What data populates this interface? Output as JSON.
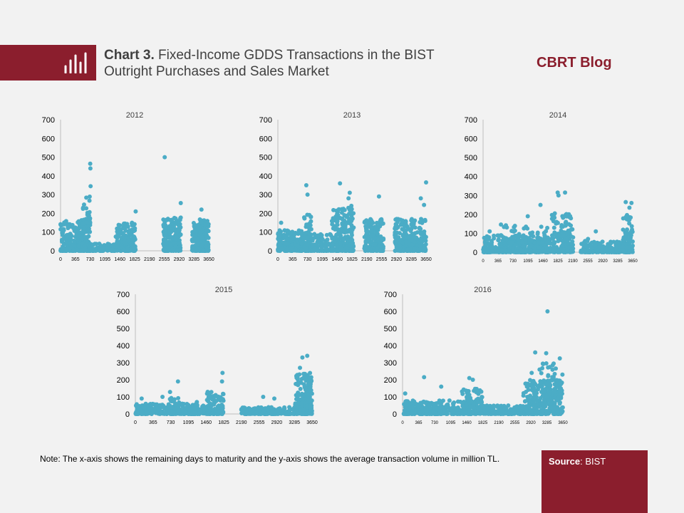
{
  "header": {
    "title_bold": "Chart 3.",
    "title_rest_line1": "Fixed-Income GDDS Transactions in the BIST",
    "title_line2": "Outright Purchases and Sales Market",
    "blog_label": "CBRT Blog"
  },
  "footer": {
    "note": "Note: The x-axis shows the remaining days to maturity and the y-axis shows the average transaction volume in million TL.",
    "source_label": "Source",
    "source_value": "BIST"
  },
  "colors": {
    "accent": "#8b1e2d",
    "points": "#4bacc6",
    "text": "#404040"
  },
  "chart_data": [
    {
      "type": "scatter",
      "title": "2012",
      "xlim": [
        0,
        3650
      ],
      "ylim": [
        0,
        700
      ],
      "xticks": [
        0,
        365,
        730,
        1095,
        1460,
        1825,
        2190,
        2555,
        2920,
        3285,
        3650
      ],
      "yticks": [
        0,
        100,
        200,
        300,
        400,
        500,
        600,
        700
      ],
      "clusters": [
        {
          "x": [
            0,
            730
          ],
          "y": [
            0,
            170
          ],
          "n": 300
        },
        {
          "x": [
            550,
            730
          ],
          "y": [
            100,
            290
          ],
          "n": 40
        },
        {
          "x": [
            730,
            1360
          ],
          "y": [
            0,
            40
          ],
          "n": 120
        },
        {
          "x": [
            1360,
            1850
          ],
          "y": [
            0,
            150
          ],
          "n": 180
        },
        {
          "x": [
            2530,
            2960
          ],
          "y": [
            0,
            180
          ],
          "n": 220
        },
        {
          "x": [
            3240,
            3650
          ],
          "y": [
            0,
            170
          ],
          "n": 220
        }
      ],
      "points": [
        [
          730,
          465
        ],
        [
          735,
          440
        ],
        [
          740,
          345
        ],
        [
          2565,
          500
        ],
        [
          2960,
          255
        ],
        [
          1850,
          210
        ],
        [
          3470,
          220
        ],
        [
          180,
          130
        ],
        [
          1760,
          150
        ]
      ]
    },
    {
      "type": "scatter",
      "title": "2013",
      "xlim": [
        0,
        3650
      ],
      "ylim": [
        0,
        700
      ],
      "xticks": [
        0,
        365,
        730,
        1095,
        1460,
        1825,
        2190,
        2555,
        2920,
        3285,
        3650
      ],
      "yticks": [
        0,
        100,
        200,
        300,
        400,
        500,
        600,
        700
      ],
      "clusters": [
        {
          "x": [
            0,
            560
          ],
          "y": [
            0,
            110
          ],
          "n": 200
        },
        {
          "x": [
            560,
            830
          ],
          "y": [
            0,
            200
          ],
          "n": 100
        },
        {
          "x": [
            830,
            1330
          ],
          "y": [
            0,
            90
          ],
          "n": 90
        },
        {
          "x": [
            1330,
            1870
          ],
          "y": [
            0,
            230
          ],
          "n": 250
        },
        {
          "x": [
            2130,
            2600
          ],
          "y": [
            0,
            170
          ],
          "n": 200
        },
        {
          "x": [
            2880,
            3650
          ],
          "y": [
            0,
            170
          ],
          "n": 280
        }
      ],
      "points": [
        [
          700,
          350
        ],
        [
          730,
          300
        ],
        [
          1530,
          360
        ],
        [
          1770,
          310
        ],
        [
          1740,
          280
        ],
        [
          1810,
          240
        ],
        [
          2490,
          290
        ],
        [
          3520,
          280
        ],
        [
          3650,
          365
        ],
        [
          3600,
          245
        ],
        [
          80,
          150
        ],
        [
          3160,
          110
        ]
      ]
    },
    {
      "type": "scatter",
      "title": "2014",
      "xlim": [
        0,
        3650
      ],
      "ylim": [
        0,
        700
      ],
      "xticks": [
        0,
        365,
        730,
        1095,
        1460,
        1825,
        2190,
        2555,
        2920,
        3285,
        3650
      ],
      "yticks": [
        0,
        100,
        200,
        300,
        400,
        500,
        600,
        700
      ],
      "clusters": [
        {
          "x": [
            0,
            1650
          ],
          "y": [
            0,
            90
          ],
          "n": 350
        },
        {
          "x": [
            400,
            1650
          ],
          "y": [
            50,
            150
          ],
          "n": 60
        },
        {
          "x": [
            1650,
            2200
          ],
          "y": [
            0,
            210
          ],
          "n": 150
        },
        {
          "x": [
            2380,
            3650
          ],
          "y": [
            0,
            60
          ],
          "n": 200
        },
        {
          "x": [
            3400,
            3650
          ],
          "y": [
            0,
            200
          ],
          "n": 80
        }
      ],
      "points": [
        [
          1820,
          315
        ],
        [
          1840,
          300
        ],
        [
          2000,
          315
        ],
        [
          1400,
          250
        ],
        [
          3480,
          265
        ],
        [
          3620,
          260
        ],
        [
          3570,
          235
        ],
        [
          1090,
          190
        ],
        [
          160,
          110
        ],
        [
          2750,
          110
        ],
        [
          2560,
          70
        ]
      ]
    },
    {
      "type": "scatter",
      "title": "2015",
      "xlim": [
        0,
        3650
      ],
      "ylim": [
        0,
        700
      ],
      "xticks": [
        0,
        365,
        730,
        1095,
        1460,
        1825,
        2190,
        2555,
        2920,
        3285,
        3650
      ],
      "yticks": [
        0,
        100,
        200,
        300,
        400,
        500,
        600,
        700
      ],
      "clusters": [
        {
          "x": [
            0,
            1480
          ],
          "y": [
            0,
            60
          ],
          "n": 330
        },
        {
          "x": [
            700,
            920
          ],
          "y": [
            40,
            130
          ],
          "n": 20
        },
        {
          "x": [
            1480,
            1820
          ],
          "y": [
            0,
            130
          ],
          "n": 120
        },
        {
          "x": [
            2190,
            3300
          ],
          "y": [
            0,
            40
          ],
          "n": 220
        },
        {
          "x": [
            3300,
            3650
          ],
          "y": [
            0,
            240
          ],
          "n": 200
        }
      ],
      "points": [
        [
          880,
          190
        ],
        [
          1800,
          240
        ],
        [
          1790,
          190
        ],
        [
          3450,
          330
        ],
        [
          3550,
          340
        ],
        [
          3400,
          270
        ],
        [
          130,
          90
        ],
        [
          560,
          100
        ],
        [
          1270,
          70
        ],
        [
          2640,
          100
        ],
        [
          2870,
          90
        ]
      ]
    },
    {
      "type": "scatter",
      "title": "2016",
      "xlim": [
        0,
        3650
      ],
      "ylim": [
        0,
        700
      ],
      "xticks": [
        0,
        365,
        730,
        1095,
        1460,
        1825,
        2190,
        2555,
        2920,
        3285,
        3650
      ],
      "yticks": [
        0,
        100,
        200,
        300,
        400,
        500,
        600,
        700
      ],
      "clusters": [
        {
          "x": [
            0,
            1800
          ],
          "y": [
            0,
            80
          ],
          "n": 380
        },
        {
          "x": [
            1350,
            1850
          ],
          "y": [
            40,
            150
          ],
          "n": 60
        },
        {
          "x": [
            1850,
            2750
          ],
          "y": [
            0,
            50
          ],
          "n": 150
        },
        {
          "x": [
            2750,
            3650
          ],
          "y": [
            0,
            200
          ],
          "n": 320
        },
        {
          "x": [
            3150,
            3500
          ],
          "y": [
            100,
            300
          ],
          "n": 50
        }
      ],
      "points": [
        [
          3300,
          600
        ],
        [
          3020,
          360
        ],
        [
          3270,
          355
        ],
        [
          3580,
          325
        ],
        [
          3440,
          295
        ],
        [
          490,
          215
        ],
        [
          880,
          160
        ],
        [
          1520,
          210
        ],
        [
          1600,
          200
        ],
        [
          3120,
          260
        ],
        [
          3640,
          230
        ],
        [
          60,
          120
        ],
        [
          2940,
          240
        ]
      ]
    }
  ]
}
